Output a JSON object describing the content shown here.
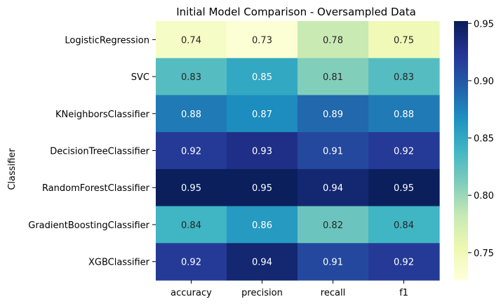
{
  "chart_data": {
    "type": "heatmap",
    "title": "Initial Model Comparison - Oversampled Data",
    "xlabel": "",
    "ylabel": "Classifier",
    "columns": [
      "accuracy",
      "precision",
      "recall",
      "f1"
    ],
    "rows": [
      "LogisticRegression",
      "SVC",
      "KNeighborsClassifier",
      "DecisionTreeClassifier",
      "RandomForestClassifier",
      "GradientBoostingClassifier",
      "XGBClassifier"
    ],
    "values": [
      [
        0.74,
        0.73,
        0.78,
        0.75
      ],
      [
        0.83,
        0.85,
        0.81,
        0.83
      ],
      [
        0.88,
        0.87,
        0.89,
        0.88
      ],
      [
        0.92,
        0.93,
        0.91,
        0.92
      ],
      [
        0.95,
        0.95,
        0.94,
        0.95
      ],
      [
        0.84,
        0.86,
        0.82,
        0.84
      ],
      [
        0.92,
        0.94,
        0.91,
        0.92
      ]
    ],
    "colormap": "YlGnBu",
    "color_range": [
      0.726,
      0.952
    ],
    "colorbar_ticks": [
      0.75,
      0.8,
      0.85,
      0.9,
      0.95
    ],
    "colorbar_tick_labels": [
      "0.75",
      "0.80",
      "0.85",
      "0.90",
      "0.95"
    ],
    "annotations": true,
    "grid": false
  }
}
